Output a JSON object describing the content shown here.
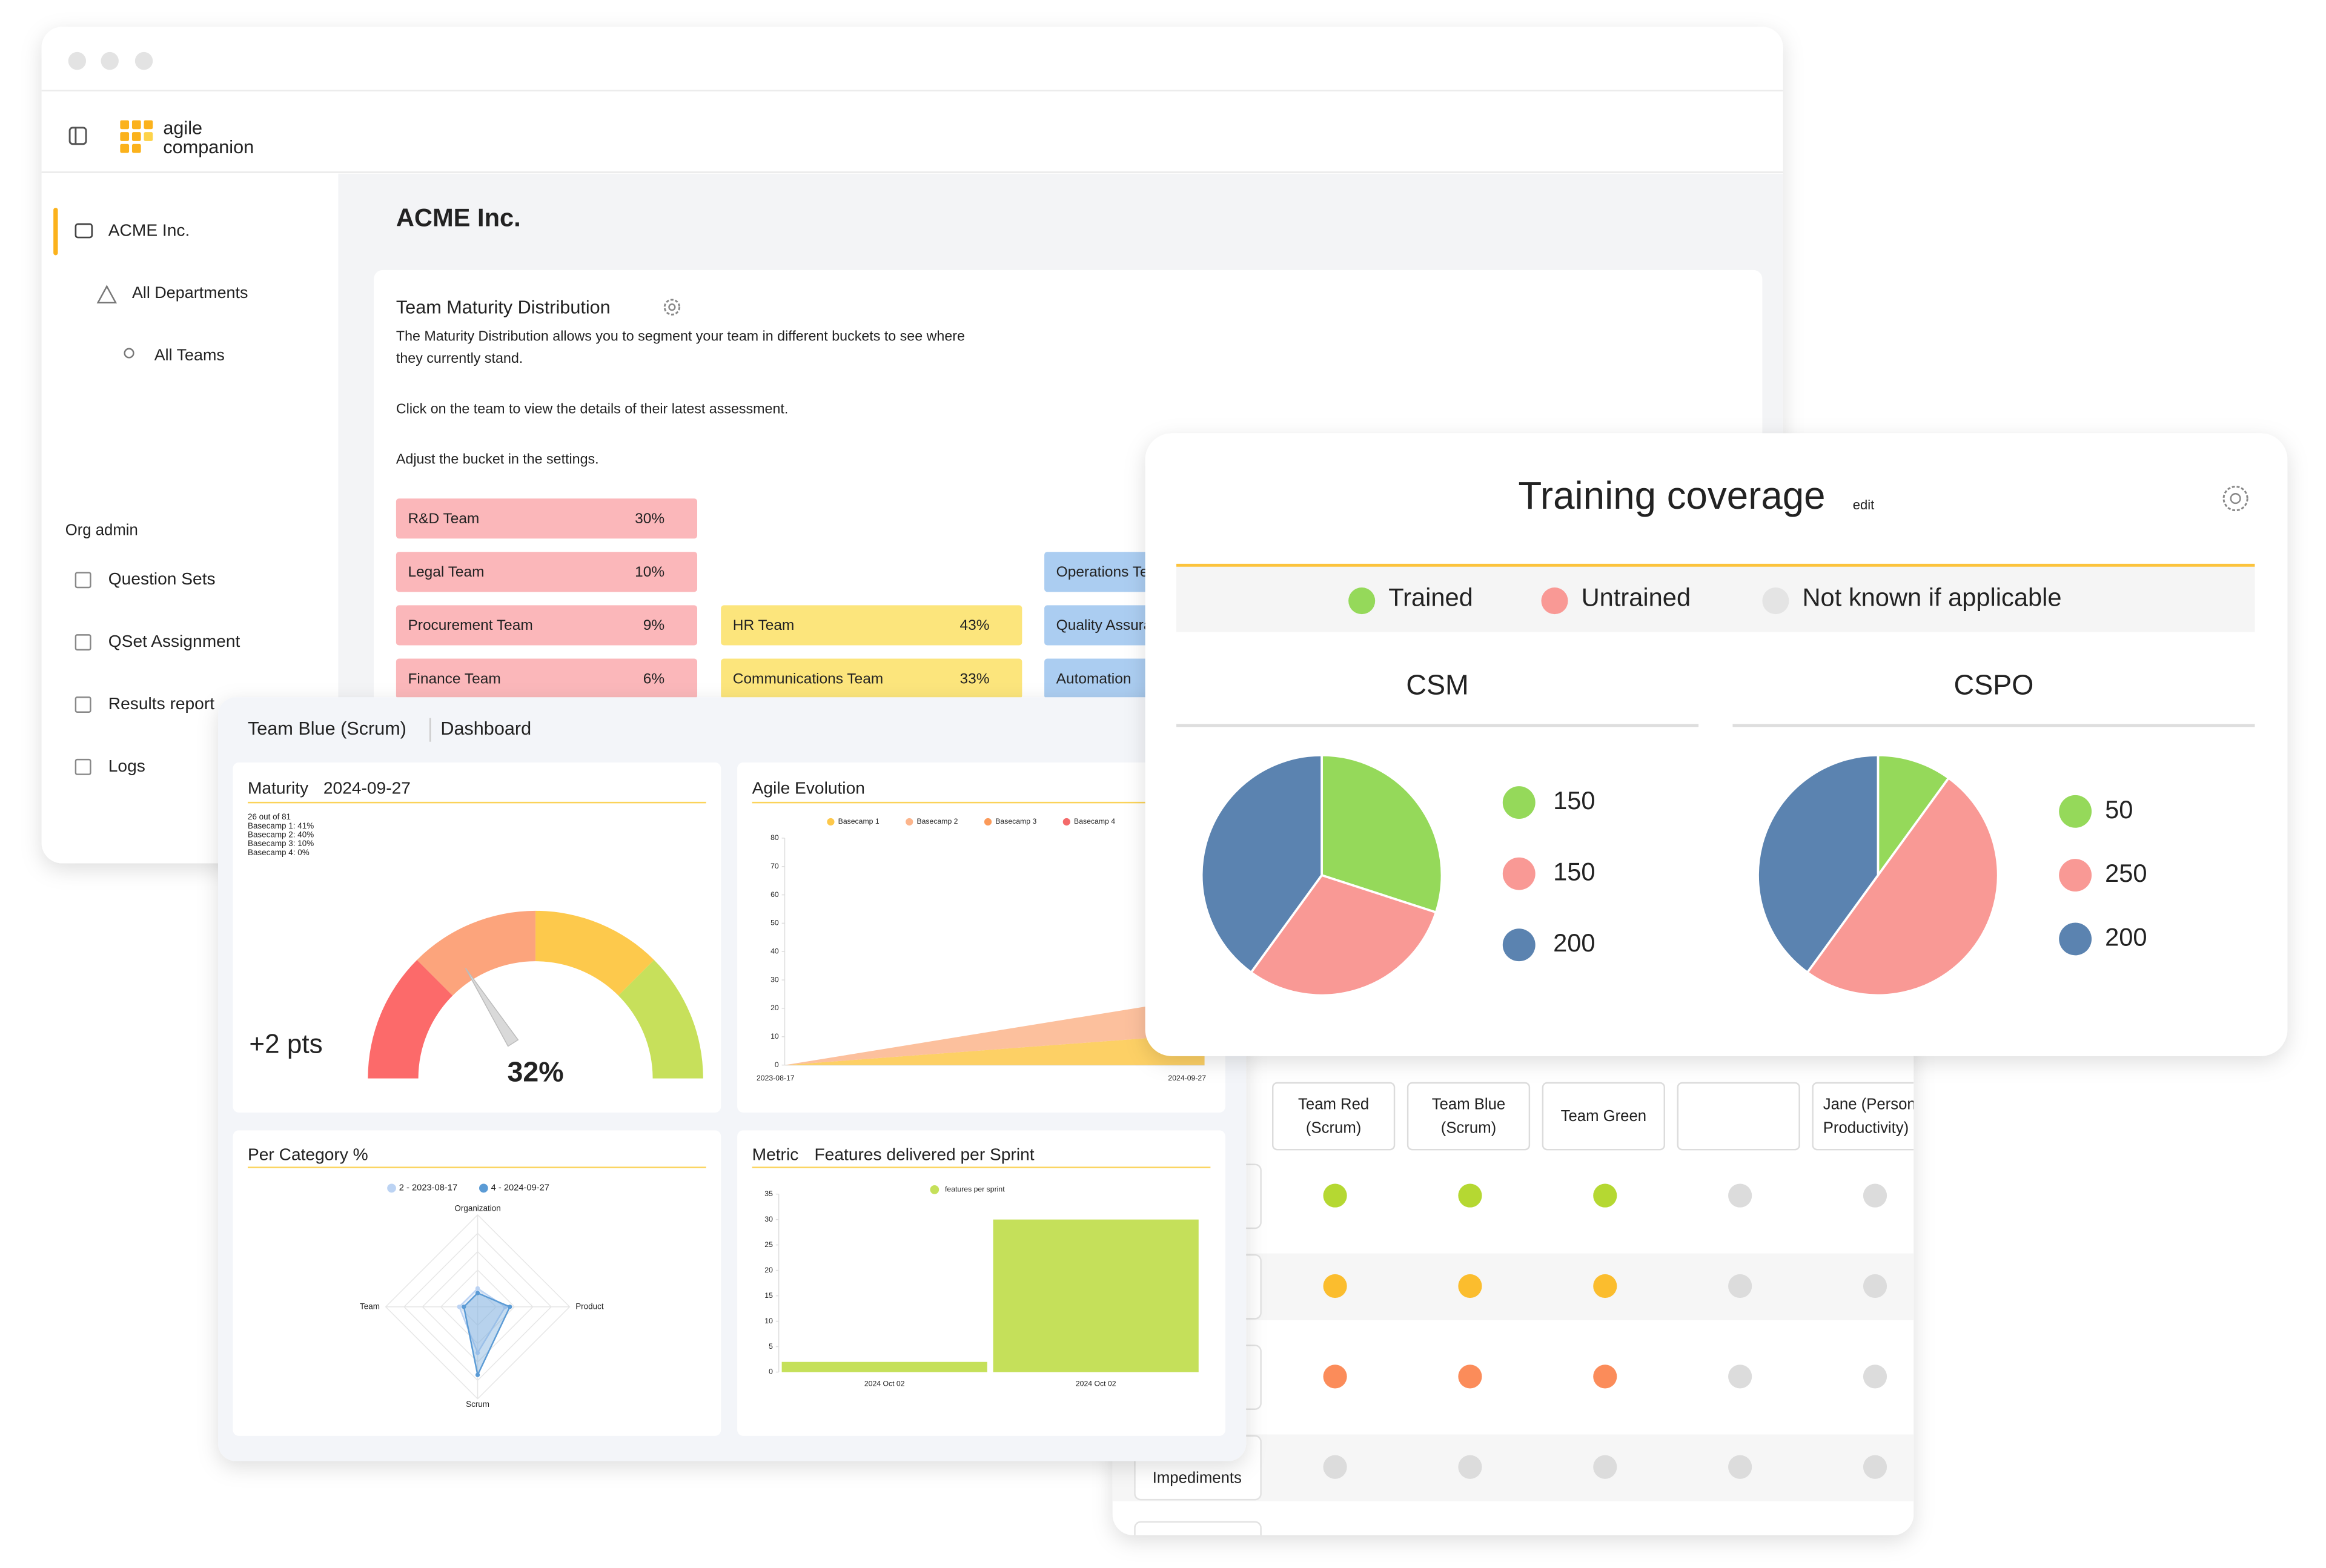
{
  "brand": [
    "agile",
    "companion"
  ],
  "sidebar": {
    "org": "ACME Inc.",
    "items": [
      "All Departments",
      "All Teams"
    ],
    "section": "Org admin",
    "admin_items": [
      "Question Sets",
      "QSet Assignment",
      "Results report",
      "Logs"
    ]
  },
  "page_title": "ACME Inc.",
  "maturity_card": {
    "title": "Team Maturity Distribution",
    "description": [
      "The Maturity Distribution allows you to segment your team in different buckets to see where",
      "they currently stand."
    ],
    "hint": "Click on the team to view the details of their latest assessment.",
    "settings_hint": "Adjust the bucket in the settings.",
    "colors": [
      "#fbb7ba",
      "#fce57c",
      "#abcdf1"
    ],
    "columns": [
      [
        {
          "team": "R&D Team",
          "share": "30%"
        },
        {
          "team": "Legal Team",
          "share": "10%"
        },
        {
          "team": "Procurement Team",
          "share": "9%"
        },
        {
          "team": "Finance Team",
          "share": "6%"
        }
      ],
      [
        {
          "team": "HR Team",
          "share": "43%"
        },
        {
          "team": "Communications Team",
          "share": "33%"
        }
      ],
      [
        {
          "team": "Operations Team"
        },
        {
          "team": "Quality Assurance"
        },
        {
          "team": "Automation"
        }
      ]
    ]
  },
  "dashboard": {
    "team": "Team Blue (Scrum)",
    "tab": "Dashboard",
    "gauge": {
      "title": "Maturity",
      "date": "2024-09-27",
      "stats": [
        "26 out of 81",
        "Basecamp 1: 41%",
        "Basecamp 2: 40%",
        "Basecamp 3: 10%",
        "Basecamp 4: 0%"
      ],
      "value": 32,
      "value_label": "32%",
      "delta": "+2 pts",
      "colors": [
        "#fc6a6a",
        "#fca47c",
        "#fdc94c",
        "#c7e05b"
      ]
    },
    "agile_evolution": {
      "type": "area",
      "title": "Agile Evolution",
      "x": [
        "2023-08-17",
        "2024-09-27"
      ],
      "series": [
        {
          "name": "Basecamp 1",
          "color": "#fdc84a",
          "values": [
            0,
            11
          ]
        },
        {
          "name": "Basecamp 2",
          "color": "#fcb58c",
          "values": [
            0,
            13
          ]
        },
        {
          "name": "Basecamp 3",
          "color": "#fb9a5a",
          "values": [
            0,
            0
          ]
        },
        {
          "name": "Basecamp 4",
          "color": "#f46a6a",
          "values": [
            0,
            0
          ]
        }
      ],
      "ylim": [
        0,
        80
      ],
      "yticks": [
        0,
        10,
        20,
        30,
        40,
        50,
        60,
        70,
        80
      ]
    },
    "per_category": {
      "type": "radar",
      "title": "Per Category %",
      "axes": [
        "Organization",
        "Product",
        "Scrum",
        "Team"
      ],
      "rlim": [
        0,
        100
      ],
      "series": [
        {
          "name": "2 - 2023-08-17",
          "color": "#bcd3f3",
          "values": [
            20,
            30,
            50,
            20
          ]
        },
        {
          "name": "4 - 2024-09-27",
          "color": "#5b9bd5",
          "values": [
            15,
            35,
            74,
            15
          ]
        }
      ]
    },
    "metric": {
      "type": "bar",
      "title": "Metric",
      "subtitle": "Features delivered per Sprint",
      "legend": "features per sprint",
      "categories": [
        "2024 Oct 02",
        "2024 Oct 02"
      ],
      "values": [
        2,
        30
      ],
      "color": "#c5e05a",
      "ylim": [
        0,
        35
      ],
      "yticks": [
        0,
        5,
        10,
        15,
        20,
        25,
        30,
        35
      ]
    }
  },
  "team_table": {
    "columns": [
      [
        "Team Red",
        "(Scrum)"
      ],
      [
        "Team Blue",
        "(Scrum)"
      ],
      [
        "Team Green"
      ],
      [],
      [
        "Jane (Personal",
        "Productivity)"
      ]
    ],
    "rows": [
      {
        "label": null,
        "dots": [
          "#b5d832",
          "#b5d832",
          "#b5d832",
          "#dcdcdc",
          "#dcdcdc"
        ]
      },
      {
        "label": null,
        "dots": [
          "#fbbd2e",
          "#fbbd2e",
          "#fbbd2e",
          "#dcdcdc",
          "#dcdcdc"
        ]
      },
      {
        "label": null,
        "dots": [
          "#fb8c5a",
          "#fb8c5a",
          "#fb8c5a",
          "#dcdcdc",
          "#dcdcdc"
        ]
      },
      {
        "label": "Impediments",
        "dots": [
          "#dcdcdc",
          "#dcdcdc",
          "#dcdcdc",
          "#dcdcdc",
          "#dcdcdc"
        ]
      }
    ]
  },
  "training": {
    "title": "Training coverage",
    "edit": "edit",
    "legend": [
      {
        "name": "Trained",
        "color": "#95d95a"
      },
      {
        "name": "Untrained",
        "color": "#f99995"
      },
      {
        "name": "Not known if applicable",
        "color": "#e4e4e4"
      }
    ],
    "colors": [
      "#95d95a",
      "#f99995",
      "#5b83b0"
    ],
    "charts": [
      {
        "type": "pie",
        "title": "CSM",
        "values": [
          150,
          150,
          200
        ]
      },
      {
        "type": "pie",
        "title": "CSPO",
        "values": [
          50,
          250,
          200
        ]
      }
    ]
  }
}
